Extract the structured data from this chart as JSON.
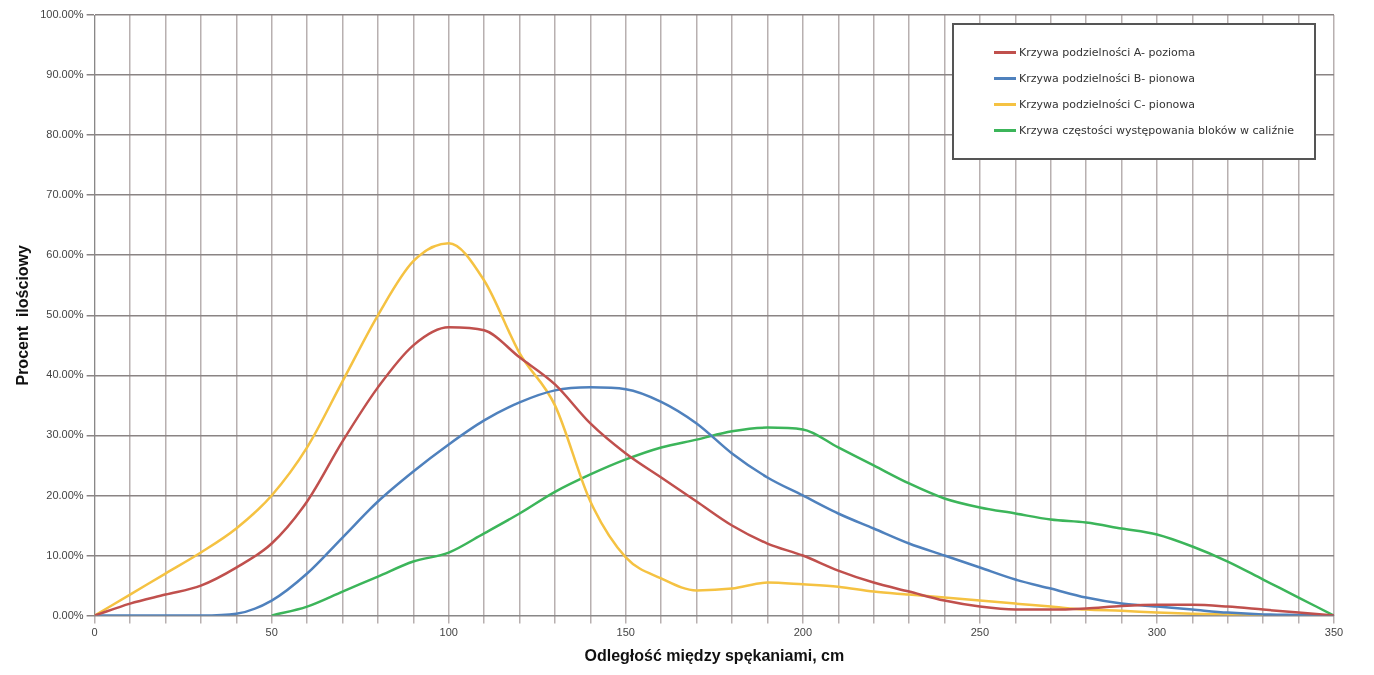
{
  "chart_data": {
    "type": "line",
    "xlabel": "Odległość między spękaniami, cm",
    "ylabel": "Procent  ilościowy",
    "x": [
      0,
      10,
      20,
      30,
      40,
      50,
      60,
      70,
      80,
      90,
      100,
      110,
      120,
      130,
      140,
      150,
      160,
      170,
      180,
      190,
      200,
      210,
      220,
      230,
      240,
      250,
      260,
      270,
      280,
      290,
      300,
      310,
      320,
      330,
      340,
      350
    ],
    "series": [
      {
        "name": "Krzywa podzielności A- pozioma",
        "color": "#c0504d",
        "values": [
          0,
          2,
          3.5,
          5,
          8,
          12,
          19,
          29,
          38,
          45,
          48,
          47.5,
          43,
          38.5,
          32,
          27,
          23,
          19,
          15,
          12,
          10,
          7.5,
          5.5,
          4,
          2.5,
          1.5,
          1,
          1,
          1.2,
          1.6,
          1.8,
          1.8,
          1.5,
          1,
          0.5,
          0
        ]
      },
      {
        "name": "Krzywa podzielności B- pionowa",
        "color": "#4f81bd",
        "values": [
          0,
          0,
          0,
          0,
          0.3,
          2.5,
          7,
          13,
          19,
          24,
          28.5,
          32.5,
          35.5,
          37.5,
          38,
          37.7,
          35.6,
          32,
          27,
          23,
          20,
          17,
          14.5,
          12,
          10,
          8,
          6,
          4.5,
          3,
          2,
          1.5,
          1,
          0.5,
          0.2,
          0.1,
          0
        ]
      },
      {
        "name": "Krzywa podzielności C- pionowa",
        "color": "#f5c242",
        "values": [
          0,
          3.5,
          7,
          10.5,
          14.5,
          20,
          28,
          39,
          50,
          59,
          62,
          55.8,
          43.7,
          35,
          19,
          9.7,
          6.2,
          4.2,
          4.5,
          5.5,
          5.2,
          4.8,
          4,
          3.5,
          3,
          2.5,
          2,
          1.5,
          1,
          0.8,
          0.5,
          0.3,
          0.2,
          0.1,
          null,
          null
        ]
      },
      {
        "name": "Krzywa częstości występowania bloków w caliźnie",
        "color": "#3cb55a",
        "values": [
          null,
          null,
          null,
          null,
          null,
          0,
          1.5,
          4,
          6.5,
          9,
          10.5,
          13.7,
          17,
          20.6,
          23.5,
          26,
          28,
          29.3,
          30.7,
          31.3,
          31,
          28,
          25,
          22,
          19.5,
          18,
          17,
          16,
          15.5,
          14.5,
          13.5,
          11.5,
          9,
          6,
          3,
          0
        ]
      }
    ],
    "xlim": [
      0,
      350
    ],
    "xticks": [
      0,
      {
        "value": 10,
        "label": null
      },
      {
        "value": 20,
        "label": null
      },
      {
        "value": 30,
        "label": null
      },
      {
        "value": 40,
        "label": null
      },
      50,
      {
        "value": 60,
        "label": null
      },
      {
        "value": 70,
        "label": null
      },
      {
        "value": 80,
        "label": null
      },
      {
        "value": 90,
        "label": null
      },
      100,
      {
        "value": 110,
        "label": null
      },
      {
        "value": 120,
        "label": null
      },
      {
        "value": 130,
        "label": null
      },
      {
        "value": 140,
        "label": null
      },
      150,
      {
        "value": 160,
        "label": null
      },
      {
        "value": 170,
        "label": null
      },
      {
        "value": 180,
        "label": null
      },
      {
        "value": 190,
        "label": null
      },
      200,
      {
        "value": 210,
        "label": null
      },
      {
        "value": 220,
        "label": null
      },
      {
        "value": 230,
        "label": null
      },
      {
        "value": 240,
        "label": null
      },
      250,
      {
        "value": 260,
        "label": null
      },
      {
        "value": 270,
        "label": null
      },
      {
        "value": 280,
        "label": null
      },
      {
        "value": 290,
        "label": null
      },
      300,
      {
        "value": 310,
        "label": null
      },
      {
        "value": 320,
        "label": null
      },
      {
        "value": 330,
        "label": null
      },
      {
        "value": 340,
        "label": null
      },
      350
    ],
    "ylim": [
      0,
      100
    ],
    "yticks": [
      {
        "value": 0,
        "label": "0.00%"
      },
      {
        "value": 10,
        "label": "10.00%"
      },
      {
        "value": 20,
        "label": "20.00%"
      },
      {
        "value": 30,
        "label": "30.00%"
      },
      {
        "value": 40,
        "label": "40.00%"
      },
      {
        "value": 50,
        "label": "50.00%"
      },
      {
        "value": 60,
        "label": "60.00%"
      },
      {
        "value": 70,
        "label": "70.00%"
      },
      {
        "value": 80,
        "label": "80.00%"
      },
      {
        "value": 90,
        "label": "90.00%"
      },
      {
        "value": 100,
        "label": "100.00%"
      }
    ],
    "grid": true,
    "legend": "top right",
    "marker": "none",
    "line_style": "solid"
  }
}
